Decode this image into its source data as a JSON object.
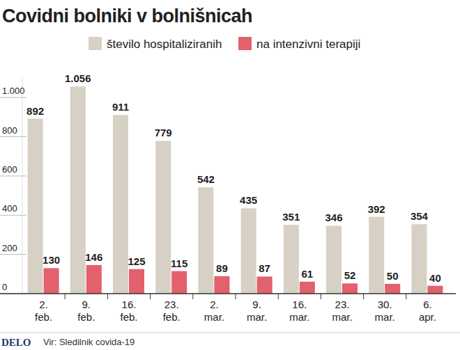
{
  "chart_data": {
    "type": "bar",
    "title": "Covidni bolniki v bolnišnicah",
    "categories": [
      "2. feb.",
      "9. feb.",
      "16. feb.",
      "23. feb.",
      "2. mar.",
      "9. mar.",
      "16. mar.",
      "23. mar.",
      "30. mar.",
      "6. apr."
    ],
    "series": [
      {
        "name": "število hospitaliziranih",
        "color": "#d7d1c5",
        "values": [
          892,
          1056,
          911,
          779,
          542,
          435,
          351,
          346,
          392,
          354
        ],
        "value_labels": [
          "892",
          "1.056",
          "911",
          "779",
          "542",
          "435",
          "351",
          "346",
          "392",
          "354"
        ]
      },
      {
        "name": "na intenzivni terapiji",
        "color": "#e3606d",
        "values": [
          130,
          146,
          125,
          115,
          89,
          87,
          61,
          52,
          50,
          40
        ]
      }
    ],
    "ylim": [
      0,
      1100
    ],
    "yticks": [
      0,
      200,
      400,
      600,
      800,
      {
        "value": 1000,
        "label": "1.000"
      }
    ],
    "grid": false,
    "data_labels": true,
    "legend": "top",
    "logo": "DELO",
    "source": "Vir: Sledilnik covida-19"
  }
}
